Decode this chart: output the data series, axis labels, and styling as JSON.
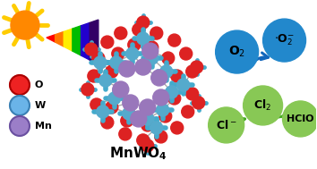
{
  "legend_items": [
    {
      "label": "O",
      "color": "#ee2222",
      "border": "#aa0000"
    },
    {
      "label": "W",
      "color": "#6ab4e8",
      "border": "#3a80b4"
    },
    {
      "label": "Mn",
      "color": "#9b7ec8",
      "border": "#6a50a0"
    }
  ],
  "o2_circle_color": "#2288cc",
  "o2_circle_border": "#0055aa",
  "green_circle_color": "#88c855",
  "green_circle_border": "#559922",
  "arrow_blue_color": "#1166bb",
  "arrow_green_color": "#44aa22",
  "sun_body_color": "#ff8800",
  "sun_ray_color": "#ffcc00",
  "spectrum_colors": [
    "#ff0000",
    "#ff7700",
    "#ffee00",
    "#00bb00",
    "#2200cc",
    "#330066"
  ],
  "bg_color": "#ffffff",
  "o_atom_color": "#dd2222",
  "w_atom_color": "#55aacc",
  "mn_atom_color": "#9977bb"
}
